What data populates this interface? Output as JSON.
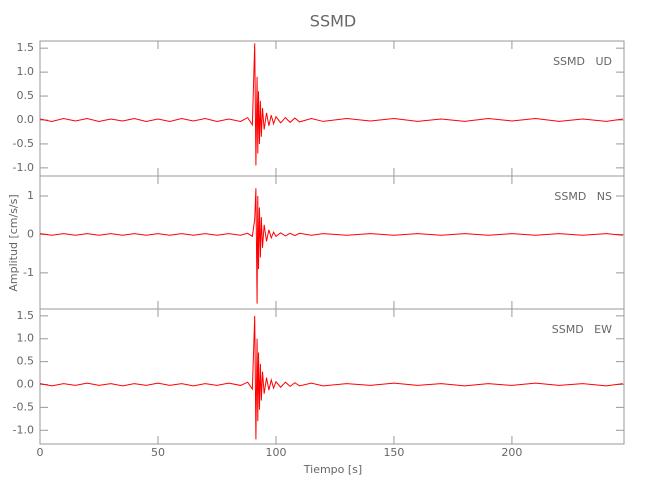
{
  "chart_data": [
    {
      "type": "line",
      "title": "SSMD",
      "annotation": "SSMD   UD",
      "color": "#ff0000",
      "x": [
        0,
        5,
        10,
        15,
        20,
        25,
        30,
        35,
        40,
        45,
        50,
        55,
        60,
        65,
        70,
        75,
        80,
        85,
        88,
        90,
        91,
        91.5,
        92,
        92.3,
        92.6,
        93,
        93.4,
        93.8,
        94.3,
        95,
        96,
        97,
        98,
        99,
        100,
        102,
        104,
        106,
        108,
        110,
        115,
        120,
        130,
        140,
        150,
        160,
        170,
        180,
        190,
        200,
        210,
        220,
        230,
        240,
        247
      ],
      "values": [
        0.02,
        -0.03,
        0.03,
        -0.02,
        0.03,
        -0.03,
        0.02,
        -0.02,
        0.03,
        -0.03,
        0.02,
        -0.03,
        0.03,
        -0.02,
        0.03,
        -0.03,
        0.02,
        -0.03,
        0.05,
        -0.1,
        1.6,
        -0.95,
        0.9,
        -0.7,
        0.6,
        -0.5,
        0.4,
        -0.35,
        0.25,
        -0.2,
        0.15,
        -0.12,
        0.1,
        -0.08,
        0.07,
        -0.06,
        0.05,
        -0.05,
        0.04,
        -0.04,
        0.03,
        -0.03,
        0.03,
        -0.02,
        0.03,
        -0.03,
        0.02,
        -0.03,
        0.03,
        -0.02,
        0.03,
        -0.03,
        0.02,
        -0.03,
        0.02
      ],
      "xlim": [
        0,
        247.5
      ],
      "xticks": [
        0,
        50,
        100,
        150,
        200
      ],
      "ylim": [
        -1.17,
        1.65
      ],
      "yticks": [
        {
          "value": -1.0,
          "label": "-1.0"
        },
        {
          "value": -0.5,
          "label": "-0.5"
        },
        {
          "value": 0,
          "label": "0.0"
        },
        {
          "value": 0.5,
          "label": "0.5"
        },
        {
          "value": 1.0,
          "label": "1.0"
        },
        {
          "value": 1.5,
          "label": "1.5"
        }
      ]
    },
    {
      "type": "line",
      "ylabel": "Amplitud [cm/s/s]",
      "annotation": "SSMD   NS",
      "color": "#ff0000",
      "x": [
        0,
        5,
        10,
        15,
        20,
        25,
        30,
        35,
        40,
        45,
        50,
        55,
        60,
        65,
        70,
        75,
        80,
        85,
        88,
        90,
        91,
        91.5,
        92,
        92.3,
        92.6,
        93,
        93.4,
        93.8,
        94.3,
        95,
        96,
        97,
        98,
        99,
        100,
        102,
        104,
        106,
        108,
        110,
        115,
        120,
        130,
        140,
        150,
        160,
        170,
        180,
        190,
        200,
        210,
        220,
        230,
        240,
        247
      ],
      "values": [
        0.02,
        -0.02,
        0.02,
        -0.02,
        0.02,
        -0.02,
        0.02,
        -0.02,
        0.02,
        -0.02,
        0.02,
        -0.02,
        0.02,
        -0.02,
        0.02,
        -0.02,
        0.02,
        -0.02,
        0.03,
        -0.05,
        0.4,
        1.2,
        -1.8,
        1.0,
        -0.9,
        0.7,
        -0.6,
        0.45,
        -0.35,
        0.25,
        -0.18,
        0.12,
        -0.09,
        0.06,
        -0.05,
        0.04,
        -0.04,
        0.03,
        -0.03,
        0.03,
        -0.02,
        0.02,
        -0.02,
        0.02,
        -0.02,
        0.02,
        -0.02,
        0.02,
        -0.02,
        0.02,
        -0.02,
        0.02,
        -0.02,
        0.02,
        -0.02
      ],
      "xlim": [
        0,
        247.5
      ],
      "xticks": [
        0,
        50,
        100,
        150,
        200
      ],
      "ylim": [
        -1.94,
        1.52
      ],
      "yticks": [
        -1,
        0,
        1
      ]
    },
    {
      "type": "line",
      "xlabel": "Tiempo [s]",
      "annotation": "SSMD   EW",
      "color": "#ff0000",
      "x": [
        0,
        5,
        10,
        15,
        20,
        25,
        30,
        35,
        40,
        45,
        50,
        55,
        60,
        65,
        70,
        75,
        80,
        85,
        88,
        90,
        91,
        91.5,
        92,
        92.3,
        92.6,
        93,
        93.4,
        93.8,
        94.3,
        95,
        96,
        97,
        98,
        99,
        100,
        102,
        104,
        106,
        108,
        110,
        115,
        120,
        130,
        140,
        150,
        160,
        170,
        180,
        190,
        200,
        210,
        220,
        230,
        240,
        247
      ],
      "values": [
        0.02,
        -0.03,
        0.02,
        -0.02,
        0.03,
        -0.02,
        0.02,
        -0.03,
        0.02,
        -0.02,
        0.03,
        -0.02,
        0.02,
        -0.03,
        0.02,
        -0.02,
        0.03,
        -0.02,
        0.05,
        -0.1,
        1.5,
        -1.2,
        1.0,
        -0.8,
        0.7,
        -0.55,
        0.45,
        -0.35,
        0.28,
        -0.2,
        0.15,
        -0.12,
        0.1,
        -0.08,
        0.06,
        -0.06,
        0.05,
        -0.04,
        0.04,
        -0.03,
        0.03,
        -0.03,
        0.02,
        -0.02,
        0.03,
        -0.02,
        0.02,
        -0.03,
        0.02,
        -0.02,
        0.03,
        -0.02,
        0.02,
        -0.03,
        0.02
      ],
      "xlim": [
        0,
        247.5
      ],
      "xticks": [
        0,
        50,
        100,
        150,
        200
      ],
      "ylim": [
        -1.3,
        1.65
      ],
      "yticks": [
        {
          "value": -1.0,
          "label": "-1.0"
        },
        {
          "value": -0.5,
          "label": "-0.5"
        },
        {
          "value": 0,
          "label": "0.0"
        },
        {
          "value": 0.5,
          "label": "0.5"
        },
        {
          "value": 1.0,
          "label": "1.0"
        },
        {
          "value": 1.5,
          "label": "1.5"
        }
      ]
    }
  ]
}
